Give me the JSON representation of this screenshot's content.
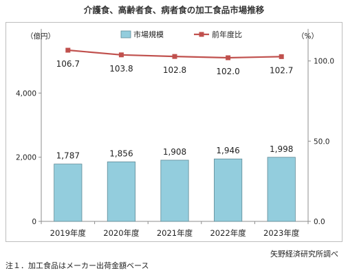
{
  "title": "介護食、高齢者食、病者食の加工食品市場推移",
  "note": "注１．加工食品はメーカー出荷金額ベース",
  "source": "矢野経済研究所調べ",
  "chart_data": {
    "type": "bar",
    "categories": [
      "2019年度",
      "2020年度",
      "2021年度",
      "2022年度",
      "2023年度"
    ],
    "series": [
      {
        "name": "市場規模",
        "type": "bar",
        "axis": "left",
        "values": [
          1787,
          1856,
          1908,
          1946,
          1998
        ],
        "labels": [
          "1,787",
          "1,856",
          "1,908",
          "1,946",
          "1,998"
        ]
      },
      {
        "name": "前年度比",
        "type": "line",
        "axis": "right",
        "values": [
          106.7,
          103.8,
          102.8,
          102.0,
          102.7
        ],
        "labels": [
          "106.7",
          "103.8",
          "102.8",
          "102.0",
          "102.7"
        ]
      }
    ],
    "y_left": {
      "unit": "（億円）",
      "ylim": [
        0,
        6000
      ],
      "ticks": [
        0,
        2000,
        4000
      ],
      "tick_labels": [
        "0",
        "2,000",
        "4,000"
      ]
    },
    "y_right": {
      "unit": "（%）",
      "ylim": [
        0,
        120
      ],
      "ticks": [
        0,
        50,
        100
      ],
      "tick_labels": [
        "0.0",
        "50.0",
        "100.0"
      ]
    },
    "legend_position": "top",
    "grid": false,
    "colors": {
      "bar_fill": "#93cddd",
      "bar_stroke": "#5f8a96",
      "line": "#c0504d"
    }
  }
}
